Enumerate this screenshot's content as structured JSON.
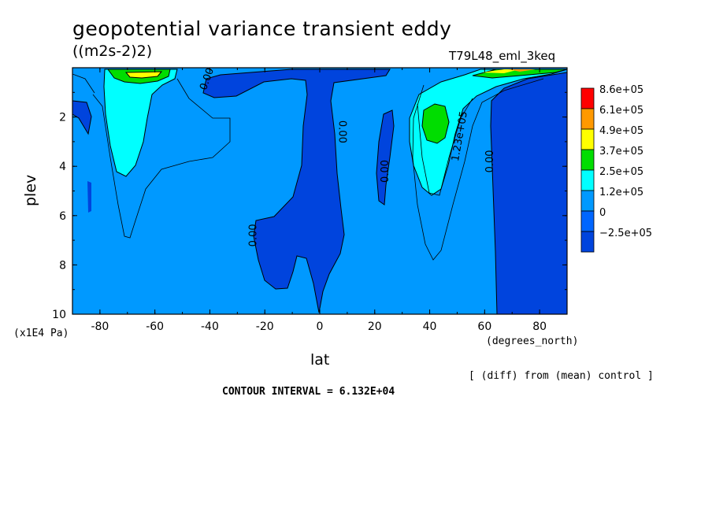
{
  "chart_data": {
    "type": "contour",
    "title": "geopotential variance transient eddy",
    "units": "((m2s-2)2)",
    "run_label": "T79L48_eml_3keq",
    "xlabel": "lat",
    "x_units": "(degrees_north)",
    "ylabel": "plev",
    "y_units": "(x1E4 Pa)",
    "note": "[ (diff) from (mean) control ]",
    "contour_interval": "CONTOUR INTERVAL = 6.132E+04",
    "xlim": [
      -90,
      90
    ],
    "ylim": [
      10,
      0
    ],
    "x_ticks": [
      -80,
      -60,
      -40,
      -20,
      0,
      20,
      40,
      60,
      80
    ],
    "x_tick_labels": [
      "-80",
      "-60",
      "-40",
      "-20",
      "0",
      "20",
      "40",
      "60",
      "80"
    ],
    "y_ticks": [
      2,
      4,
      6,
      8,
      10
    ],
    "y_tick_labels": [
      "2",
      "4",
      "6",
      "8",
      "10"
    ],
    "colorbar": {
      "levels": [
        "8.6e+05",
        "6.1e+05",
        "4.9e+05",
        "3.7e+05",
        "2.5e+05",
        "1.2e+05",
        "0",
        "−2.5e+05"
      ],
      "colors": [
        "#ff0000",
        "#ff9900",
        "#ffff00",
        "#00dd00",
        "#00ffff",
        "#0099ff",
        "#0066ff",
        "#0044dd"
      ]
    },
    "contour_labels": [
      {
        "text": "0.00",
        "x": -40,
        "y": 0.5,
        "angle": -70
      },
      {
        "text": "0.00",
        "x": 7,
        "y": 2.6,
        "angle": 90
      },
      {
        "text": "0.00",
        "x": 25,
        "y": 4.2,
        "angle": -90
      },
      {
        "text": "1.23e+05",
        "x": 52,
        "y": 2.8,
        "angle": -80
      },
      {
        "text": "0.00",
        "x": 63,
        "y": 3.8,
        "angle": -90
      },
      {
        "text": "0.00",
        "x": -23,
        "y": 6.8,
        "angle": -90
      }
    ],
    "colors": {
      "below_zero": "#0044dd",
      "zero_to_1": "#0099ff",
      "level_1": "#00ffff",
      "level_2": "#00dd00",
      "level_3": "#ffff00",
      "level_4": "#ff9900",
      "level_5": "#ff0000"
    }
  }
}
